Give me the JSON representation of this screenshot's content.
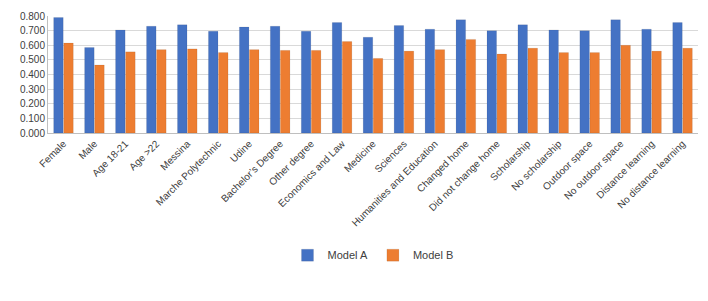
{
  "chart_data": {
    "type": "bar",
    "categories": [
      "Female",
      "Male",
      "Age 18-21",
      "Age >22",
      "Messina",
      "Marche Polytechnic",
      "Udine",
      "Bachelor’s Degree",
      "Other degree",
      "Economics and Law",
      "Medicine",
      "Sciences",
      "Humanities and Education",
      "Changed home",
      "Did not change home",
      "Scholarship",
      "No scholarship",
      "Outdoor space",
      "No outdoor space",
      "Distance learning",
      "No distance learning"
    ],
    "series": [
      {
        "name": "Model A",
        "color": "#4472C4",
        "values": [
          0.79,
          0.585,
          0.705,
          0.73,
          0.74,
          0.695,
          0.725,
          0.73,
          0.695,
          0.755,
          0.655,
          0.735,
          0.71,
          0.775,
          0.7,
          0.74,
          0.705,
          0.7,
          0.775,
          0.71,
          0.755
        ]
      },
      {
        "name": "Model B",
        "color": "#ED7D31",
        "values": [
          0.615,
          0.465,
          0.555,
          0.57,
          0.575,
          0.55,
          0.57,
          0.565,
          0.565,
          0.625,
          0.51,
          0.56,
          0.57,
          0.64,
          0.54,
          0.58,
          0.55,
          0.55,
          0.6,
          0.56,
          0.58
        ]
      }
    ],
    "ylim": [
      0,
      0.8
    ],
    "yticks": [
      {
        "value": 0,
        "label": "0.000"
      },
      {
        "value": 0.1,
        "label": "0.100"
      },
      {
        "value": 0.2,
        "label": "0.200"
      },
      {
        "value": 0.3,
        "label": "0.300"
      },
      {
        "value": 0.4,
        "label": "0.400"
      },
      {
        "value": 0.5,
        "label": "0.500"
      },
      {
        "value": 0.6,
        "label": "0.600"
      },
      {
        "value": 0.7,
        "label": "0.700"
      },
      {
        "value": 0.8,
        "label": "0.800"
      }
    ],
    "grid": true,
    "legend": "bottom"
  }
}
